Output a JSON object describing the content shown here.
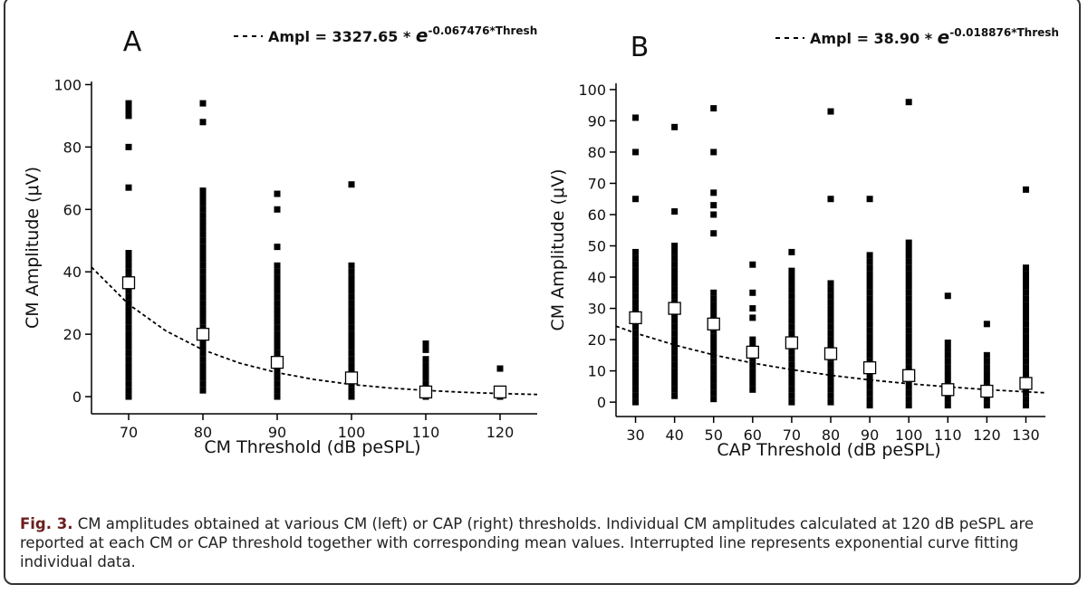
{
  "chart_data": [
    {
      "type": "scatter",
      "label": "A",
      "legend": {
        "prefix": "Ampl = 3327.65 * ",
        "base": "e",
        "exponent": "-0.067476*Thresh"
      },
      "xlabel": "CM Threshold (dB peSPL)",
      "ylabel": "CM Amplitude (μV)",
      "xlim": [
        65,
        125
      ],
      "ylim": [
        -5.5,
        101
      ],
      "xticks": [
        70,
        80,
        90,
        100,
        110,
        120
      ],
      "yticks": [
        0,
        20,
        40,
        60,
        80,
        100
      ],
      "color": "#000000",
      "columns": [
        {
          "x": 70,
          "values": [
            0,
            2,
            4,
            6,
            8,
            10,
            12,
            14,
            16,
            18,
            20,
            22,
            24,
            26,
            28,
            30,
            32,
            34,
            36,
            38,
            40,
            42,
            44,
            46,
            67,
            80,
            90,
            92,
            94
          ]
        },
        {
          "x": 80,
          "values": [
            2,
            4,
            6,
            8,
            10,
            12,
            14,
            16,
            18,
            20,
            22,
            24,
            26,
            28,
            30,
            32,
            34,
            36,
            38,
            40,
            42,
            44,
            46,
            48,
            50,
            52,
            54,
            56,
            58,
            60,
            62,
            64,
            66,
            88,
            94
          ]
        },
        {
          "x": 90,
          "values": [
            0,
            2,
            4,
            6,
            8,
            10,
            12,
            14,
            16,
            18,
            20,
            22,
            24,
            26,
            28,
            30,
            32,
            34,
            36,
            38,
            40,
            42,
            48,
            60,
            65
          ]
        },
        {
          "x": 100,
          "values": [
            0,
            2,
            4,
            6,
            8,
            10,
            12,
            14,
            16,
            18,
            20,
            22,
            24,
            26,
            28,
            30,
            32,
            34,
            36,
            38,
            40,
            42,
            68
          ]
        },
        {
          "x": 110,
          "values": [
            0,
            2,
            4,
            6,
            8,
            10,
            12,
            15,
            17
          ]
        },
        {
          "x": 120,
          "values": [
            0,
            9
          ]
        }
      ],
      "means": {
        "x": [
          70,
          80,
          90,
          100,
          110,
          120
        ],
        "values": [
          36.5,
          20,
          11,
          6,
          1.5,
          1.5
        ]
      },
      "fit": {
        "x": [
          65,
          70,
          75,
          80,
          85,
          90,
          95,
          100,
          105,
          110,
          115,
          120,
          125
        ],
        "values": [
          41.5,
          29.6,
          21.1,
          15.0,
          10.7,
          7.7,
          5.5,
          3.9,
          2.8,
          2.0,
          1.4,
          1.0,
          0.7
        ]
      }
    },
    {
      "type": "scatter",
      "label": "B",
      "legend": {
        "prefix": "Ampl = 38.90 * ",
        "base": "e",
        "exponent": "-0.018876*Thresh"
      },
      "xlabel": "CAP Threshold (dB peSPL)",
      "ylabel": "CM Amplitude (μV)",
      "xlim": [
        25,
        135
      ],
      "ylim": [
        -4.6,
        102
      ],
      "xticks": [
        30,
        40,
        50,
        60,
        70,
        80,
        90,
        100,
        110,
        120,
        130
      ],
      "yticks": [
        0,
        10,
        20,
        30,
        40,
        50,
        60,
        70,
        80,
        90,
        100
      ],
      "color": "#000000",
      "columns": [
        {
          "x": 30,
          "values": [
            0,
            2,
            4,
            6,
            8,
            10,
            12,
            14,
            16,
            18,
            20,
            22,
            24,
            26,
            28,
            30,
            32,
            34,
            36,
            38,
            40,
            42,
            44,
            46,
            48,
            65,
            80,
            91
          ]
        },
        {
          "x": 40,
          "values": [
            2,
            4,
            6,
            8,
            10,
            12,
            14,
            16,
            18,
            20,
            22,
            24,
            26,
            28,
            30,
            32,
            34,
            36,
            38,
            40,
            42,
            44,
            46,
            48,
            50,
            61,
            88
          ]
        },
        {
          "x": 50,
          "values": [
            1,
            3,
            5,
            7,
            9,
            11,
            13,
            15,
            17,
            19,
            21,
            23,
            25,
            27,
            29,
            31,
            33,
            35,
            54,
            60,
            63,
            67,
            80,
            94
          ]
        },
        {
          "x": 60,
          "values": [
            4,
            6,
            8,
            10,
            12,
            14,
            16,
            18,
            20,
            27,
            30,
            35,
            44
          ]
        },
        {
          "x": 70,
          "values": [
            0,
            2,
            4,
            6,
            8,
            10,
            12,
            14,
            16,
            18,
            20,
            22,
            24,
            26,
            28,
            30,
            32,
            34,
            36,
            38,
            40,
            42,
            48
          ]
        },
        {
          "x": 80,
          "values": [
            0,
            2,
            4,
            6,
            8,
            10,
            12,
            14,
            16,
            18,
            20,
            22,
            24,
            26,
            28,
            30,
            32,
            34,
            36,
            38,
            65,
            93
          ]
        },
        {
          "x": 90,
          "values": [
            -1,
            1,
            3,
            5,
            7,
            9,
            11,
            13,
            15,
            17,
            19,
            21,
            23,
            25,
            27,
            29,
            31,
            33,
            35,
            37,
            39,
            41,
            43,
            45,
            47,
            65
          ]
        },
        {
          "x": 100,
          "values": [
            -1,
            1,
            3,
            5,
            7,
            9,
            11,
            13,
            15,
            17,
            19,
            21,
            23,
            25,
            27,
            29,
            31,
            33,
            35,
            37,
            39,
            41,
            43,
            45,
            47,
            49,
            51,
            96
          ]
        },
        {
          "x": 110,
          "values": [
            -1,
            1,
            3,
            5,
            7,
            9,
            11,
            13,
            15,
            17,
            19,
            34
          ]
        },
        {
          "x": 120,
          "values": [
            -1,
            1,
            3,
            5,
            7,
            9,
            11,
            13,
            15,
            25
          ]
        },
        {
          "x": 130,
          "values": [
            -1,
            1,
            3,
            5,
            7,
            9,
            11,
            13,
            15,
            17,
            19,
            21,
            23,
            25,
            27,
            29,
            31,
            33,
            35,
            37,
            39,
            41,
            43,
            68
          ]
        }
      ],
      "means": {
        "x": [
          30,
          40,
          50,
          60,
          70,
          80,
          90,
          100,
          110,
          120,
          130
        ],
        "values": [
          27,
          30,
          25,
          16,
          19,
          15.5,
          11,
          8.5,
          4,
          3.5,
          6
        ]
      },
      "fit": {
        "x": [
          25,
          30,
          40,
          50,
          60,
          70,
          80,
          90,
          100,
          110,
          120,
          130,
          135
        ],
        "values": [
          24.3,
          22.1,
          18.3,
          15.1,
          12.5,
          10.4,
          8.6,
          7.1,
          5.9,
          4.9,
          4.0,
          3.3,
          3.0
        ]
      }
    }
  ],
  "caption": {
    "label": "Fig. 3.",
    "text": " CM amplitudes obtained at various CM (left) or CAP (right) thresholds. Individual CM amplitudes calculated at 120 dB peSPL are reported at each CM or CAP threshold together with corresponding mean values. Interrupted line represents exponential curve fitting individual data."
  }
}
